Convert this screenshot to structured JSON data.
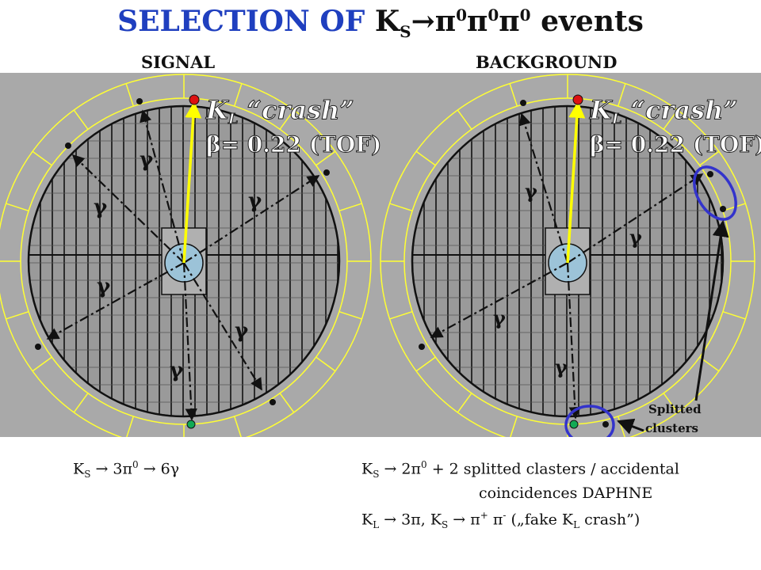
{
  "title": {
    "highlight": "SELECTION OF",
    "k": "K",
    "k_sub": "S",
    "arrow_pions": "→π",
    "sup0": "0",
    "pi": "π",
    "suffix": "events"
  },
  "panels": {
    "signal_label": "SIGNAL",
    "background_label": "BACKGROUND"
  },
  "kl_crash": {
    "line1": "K",
    "line1_sub": "L",
    "line1_rest": " “crash”",
    "line2": "β= 0.22 (TOF)"
  },
  "gamma": "γ",
  "annotation": {
    "line1": "Splitted",
    "line2": "clusters"
  },
  "captions": {
    "signal": "K",
    "signal_sub": "S",
    "signal_rest": " → 3π",
    "signal_sup": "0",
    "signal_end": " → 6γ",
    "bg_line1_a": "K",
    "bg_line1_sub": "S",
    "bg_line1_b": " → 2π",
    "bg_line1_sup": "0",
    "bg_line1_c": " + 2 splitted clasters / accidental",
    "bg_line2": "coincidences DAPHNE",
    "bg_line3_a": "K",
    "bg_line3_sub1": "L",
    "bg_line3_b": " → 3π,  K",
    "bg_line3_sub2": "S",
    "bg_line3_c": " → π",
    "bg_line3_sup1": "+",
    "bg_line3_d": " π",
    "bg_line3_sup2": "-",
    "bg_line3_e": " („fake K",
    "bg_line3_sub3": "L",
    "bg_line3_f": " crash”)"
  },
  "colors": {
    "title_highlight": "#1f3fbf",
    "stage_bg": "#a9a9a9",
    "ring": "#ffff33",
    "kl_arrow": "#ffff00",
    "crash_text": "#ffffff",
    "split_circle": "#3333cc",
    "red_dot": "#dd1111",
    "green_dot": "#11aa55"
  }
}
